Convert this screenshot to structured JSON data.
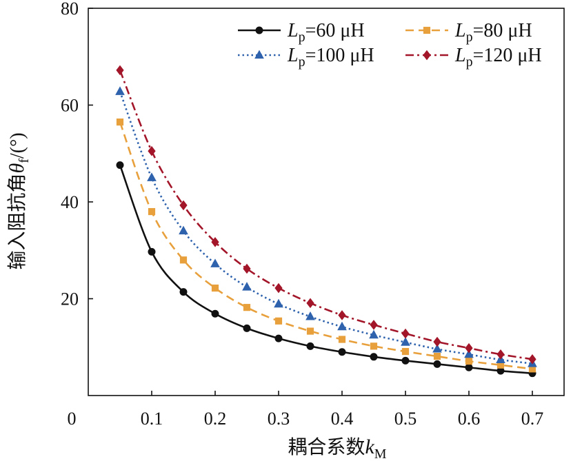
{
  "chart_data": {
    "type": "line",
    "title": "",
    "xlabel": {
      "cn": "耦合系数",
      "var": "k",
      "sub": "M"
    },
    "ylabel": {
      "cn": "输入阻抗角",
      "var": "θ",
      "sub": "f",
      "unit": "/(°)"
    },
    "xlim": [
      0,
      0.75
    ],
    "ylim": [
      0,
      80
    ],
    "xticks": [
      0.1,
      0.2,
      0.3,
      0.4,
      0.5,
      0.6,
      0.7
    ],
    "xtick_labels": [
      "0.1",
      "0.2",
      "0.3",
      "0.4",
      "0.5",
      "0.6",
      "0.7"
    ],
    "yticks": [
      20,
      40,
      60,
      80
    ],
    "ytick_labels": [
      "20",
      "40",
      "60",
      "80"
    ],
    "origin_label": "0",
    "grid": false,
    "legend_position": "top-right",
    "x": [
      0.05,
      0.1,
      0.15,
      0.2,
      0.25,
      0.3,
      0.35,
      0.4,
      0.45,
      0.5,
      0.55,
      0.6,
      0.65,
      0.7
    ],
    "series": [
      {
        "name": "Lp=60 μH",
        "legend": {
          "var": "L",
          "sub": "p",
          "rest": "=60 μH"
        },
        "color": "#111111",
        "dash": "solid",
        "marker": "circle",
        "values": [
          47.6,
          29.7,
          21.4,
          16.9,
          13.9,
          11.8,
          10.2,
          9.0,
          8.0,
          7.2,
          6.5,
          5.8,
          5.1,
          4.6
        ]
      },
      {
        "name": "Lp=80 μH",
        "legend": {
          "var": "L",
          "sub": "p",
          "rest": "=80 μH"
        },
        "color": "#e8a03c",
        "dash": "dashed",
        "marker": "square",
        "values": [
          56.5,
          38.0,
          28.0,
          22.2,
          18.2,
          15.4,
          13.3,
          11.6,
          10.2,
          9.1,
          8.1,
          7.1,
          6.3,
          5.5
        ]
      },
      {
        "name": "Lp=100 μH",
        "legend": {
          "var": "L",
          "sub": "p",
          "rest": "=100 μH"
        },
        "color": "#2e62ad",
        "dash": "dotted",
        "marker": "triangle",
        "values": [
          62.8,
          45.0,
          34.0,
          27.2,
          22.4,
          18.9,
          16.3,
          14.2,
          12.5,
          11.0,
          9.6,
          8.5,
          7.4,
          6.6
        ]
      },
      {
        "name": "Lp=120 μH",
        "legend": {
          "var": "L",
          "sub": "p",
          "rest": "=120 μH"
        },
        "color": "#a3162a",
        "dash": "dashdot",
        "marker": "diamond",
        "values": [
          67.2,
          50.5,
          39.3,
          31.7,
          26.2,
          22.2,
          19.1,
          16.6,
          14.6,
          12.8,
          11.1,
          9.8,
          8.5,
          7.5
        ]
      }
    ]
  }
}
